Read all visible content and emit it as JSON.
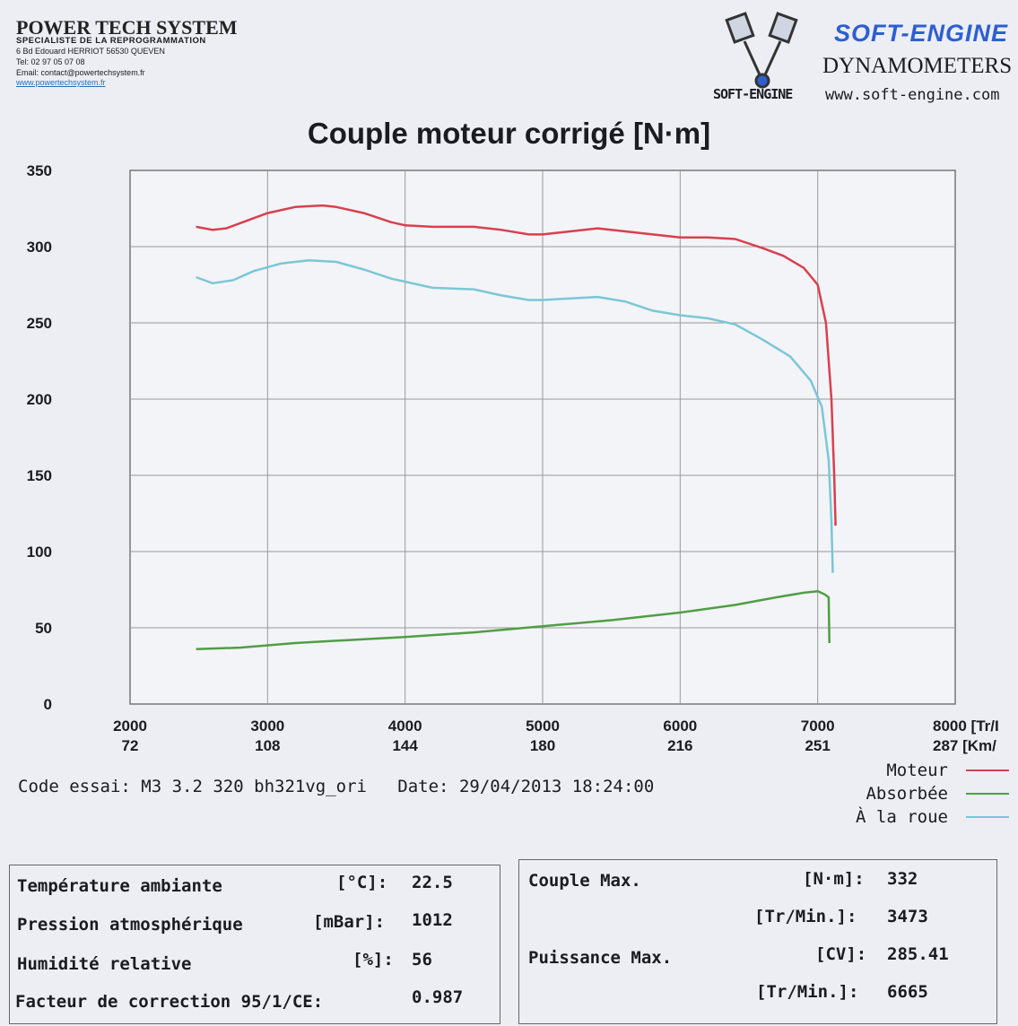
{
  "header": {
    "brand_title": "POWER TECH SYSTEM",
    "brand_subtitle": "SPECIALISTE DE LA REPROGRAMMATION",
    "brand_address": "6 Bd Edouard HERRIOT   56530 QUEVEN",
    "brand_tel": "Tel: 02 97 05 07 08",
    "brand_email": "Email: contact@powertechsystem.fr",
    "brand_web": "www.powertechsystem.fr",
    "soft_engine": "SOFT-ENGINE",
    "dynamometers": "DYNAMOMETERS",
    "soft_engine_small": "SOFT-ENGINE",
    "soft_engine_web": "www.soft-engine.com"
  },
  "test": {
    "code_label": "Code essai:",
    "code_value": "M3 3.2 320 bh321vg_ori",
    "date_label": "Date:",
    "date_value": "29/04/2013 18:24:00"
  },
  "conditions": {
    "rows": [
      {
        "label": "Température ambiante",
        "unit": "[°C]:",
        "value": "22.5"
      },
      {
        "label": "Pression atmosphérique",
        "unit": "[mBar]:",
        "value": "1012"
      },
      {
        "label": "Humidité relative",
        "unit": "[%]:",
        "value": "56"
      },
      {
        "label": "Facteur de correction 95/1/CE:",
        "unit": "",
        "value": "0.987"
      }
    ]
  },
  "results": {
    "couple_label": "Couple Max.",
    "couple_unit": "[N·m]:",
    "couple_value": "332",
    "couple_rpm_unit": "[Tr/Min.]:",
    "couple_rpm_value": "3473",
    "puissance_label": "Puissance Max.",
    "puissance_unit": "[CV]:",
    "puissance_value": "285.41",
    "puissance_rpm_unit": "[Tr/Min.]:",
    "puissance_rpm_value": "6665"
  },
  "chart_data": {
    "type": "line",
    "title": "Couple moteur corrigé [N·m]",
    "xlim": [
      2000,
      8000
    ],
    "ylim": [
      0,
      350
    ],
    "x_ticks": [
      2000,
      3000,
      4000,
      5000,
      6000,
      7000,
      8000
    ],
    "x_tick_labels": [
      "2000",
      "3000",
      "4000",
      "5000",
      "6000",
      "7000",
      "8000 [Tr/I"
    ],
    "x_tick_labels_2": [
      "72",
      "108",
      "144",
      "180",
      "216",
      "251",
      "287 [Km/"
    ],
    "y_ticks": [
      0,
      50,
      100,
      150,
      200,
      250,
      300,
      350
    ],
    "grid": true,
    "legend_position": "bottom-right",
    "series": [
      {
        "name": "Moteur",
        "color": "#d8404e",
        "points": [
          [
            2480,
            313
          ],
          [
            2600,
            311
          ],
          [
            2700,
            312
          ],
          [
            2850,
            317
          ],
          [
            3000,
            322
          ],
          [
            3200,
            326
          ],
          [
            3400,
            327
          ],
          [
            3500,
            326
          ],
          [
            3700,
            322
          ],
          [
            3900,
            316
          ],
          [
            4000,
            314
          ],
          [
            4200,
            313
          ],
          [
            4500,
            313
          ],
          [
            4700,
            311
          ],
          [
            4900,
            308
          ],
          [
            5000,
            308
          ],
          [
            5200,
            310
          ],
          [
            5400,
            312
          ],
          [
            5600,
            310
          ],
          [
            5800,
            308
          ],
          [
            6000,
            306
          ],
          [
            6200,
            306
          ],
          [
            6400,
            305
          ],
          [
            6600,
            299
          ],
          [
            6750,
            294
          ],
          [
            6900,
            286
          ],
          [
            7000,
            275
          ],
          [
            7060,
            250
          ],
          [
            7100,
            200
          ],
          [
            7120,
            150
          ],
          [
            7130,
            117
          ]
        ]
      },
      {
        "name": "Absorbée",
        "color": "#4f9e45",
        "points": [
          [
            2480,
            36
          ],
          [
            2800,
            37
          ],
          [
            3200,
            40
          ],
          [
            3600,
            42
          ],
          [
            4000,
            44
          ],
          [
            4500,
            47
          ],
          [
            5000,
            51
          ],
          [
            5500,
            55
          ],
          [
            6000,
            60
          ],
          [
            6400,
            65
          ],
          [
            6700,
            70
          ],
          [
            6900,
            73
          ],
          [
            7000,
            74
          ],
          [
            7050,
            72
          ],
          [
            7080,
            70
          ],
          [
            7085,
            40
          ]
        ]
      },
      {
        "name": "À la roue",
        "color": "#7ac7d6",
        "points": [
          [
            2480,
            280
          ],
          [
            2600,
            276
          ],
          [
            2750,
            278
          ],
          [
            2900,
            284
          ],
          [
            3100,
            289
          ],
          [
            3300,
            291
          ],
          [
            3500,
            290
          ],
          [
            3700,
            285
          ],
          [
            3900,
            279
          ],
          [
            4000,
            277
          ],
          [
            4200,
            273
          ],
          [
            4500,
            272
          ],
          [
            4700,
            268
          ],
          [
            4900,
            265
          ],
          [
            5000,
            265
          ],
          [
            5200,
            266
          ],
          [
            5400,
            267
          ],
          [
            5600,
            264
          ],
          [
            5800,
            258
          ],
          [
            6000,
            255
          ],
          [
            6200,
            253
          ],
          [
            6400,
            249
          ],
          [
            6600,
            239
          ],
          [
            6800,
            228
          ],
          [
            6950,
            212
          ],
          [
            7030,
            195
          ],
          [
            7080,
            160
          ],
          [
            7100,
            120
          ],
          [
            7110,
            86
          ]
        ]
      }
    ]
  }
}
